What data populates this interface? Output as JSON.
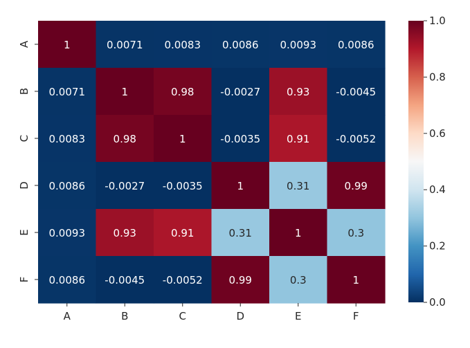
{
  "chart_data": {
    "type": "heatmap",
    "title": "",
    "xlabel": "",
    "ylabel": "",
    "x_categories": [
      "A",
      "B",
      "C",
      "D",
      "E",
      "F"
    ],
    "y_categories": [
      "A",
      "B",
      "C",
      "D",
      "E",
      "F"
    ],
    "values": [
      [
        1,
        0.0071,
        0.0083,
        0.0086,
        0.0093,
        0.0086
      ],
      [
        0.0071,
        1,
        0.98,
        -0.0027,
        0.93,
        -0.0045
      ],
      [
        0.0083,
        0.98,
        1,
        -0.0035,
        0.91,
        -0.0052
      ],
      [
        0.0086,
        -0.0027,
        -0.0035,
        1,
        0.31,
        0.99
      ],
      [
        0.0093,
        0.93,
        0.91,
        0.31,
        1,
        0.3
      ],
      [
        0.0086,
        -0.0045,
        -0.0052,
        0.99,
        0.3,
        1
      ]
    ],
    "cell_labels": [
      [
        "1",
        "0.0071",
        "0.0083",
        "0.0086",
        "0.0093",
        "0.0086"
      ],
      [
        "0.0071",
        "1",
        "0.98",
        "-0.0027",
        "0.93",
        "-0.0045"
      ],
      [
        "0.0083",
        "0.98",
        "1",
        "-0.0035",
        "0.91",
        "-0.0052"
      ],
      [
        "0.0086",
        "-0.0027",
        "-0.0035",
        "1",
        "0.31",
        "0.99"
      ],
      [
        "0.0093",
        "0.93",
        "0.91",
        "0.31",
        "1",
        "0.3"
      ],
      [
        "0.0086",
        "-0.0045",
        "-0.0052",
        "0.99",
        "0.3",
        "1"
      ]
    ],
    "colormap": "RdBu_r",
    "color_range": [
      0,
      1
    ],
    "colorbar": {
      "ticks": [
        0,
        0.2,
        0.4,
        0.6,
        0.8,
        1
      ],
      "tick_labels": [
        "0.0",
        "0.2",
        "0.4",
        "0.6",
        "0.8",
        "1.0"
      ],
      "placement": "right"
    },
    "grid": false,
    "legend": "none"
  }
}
